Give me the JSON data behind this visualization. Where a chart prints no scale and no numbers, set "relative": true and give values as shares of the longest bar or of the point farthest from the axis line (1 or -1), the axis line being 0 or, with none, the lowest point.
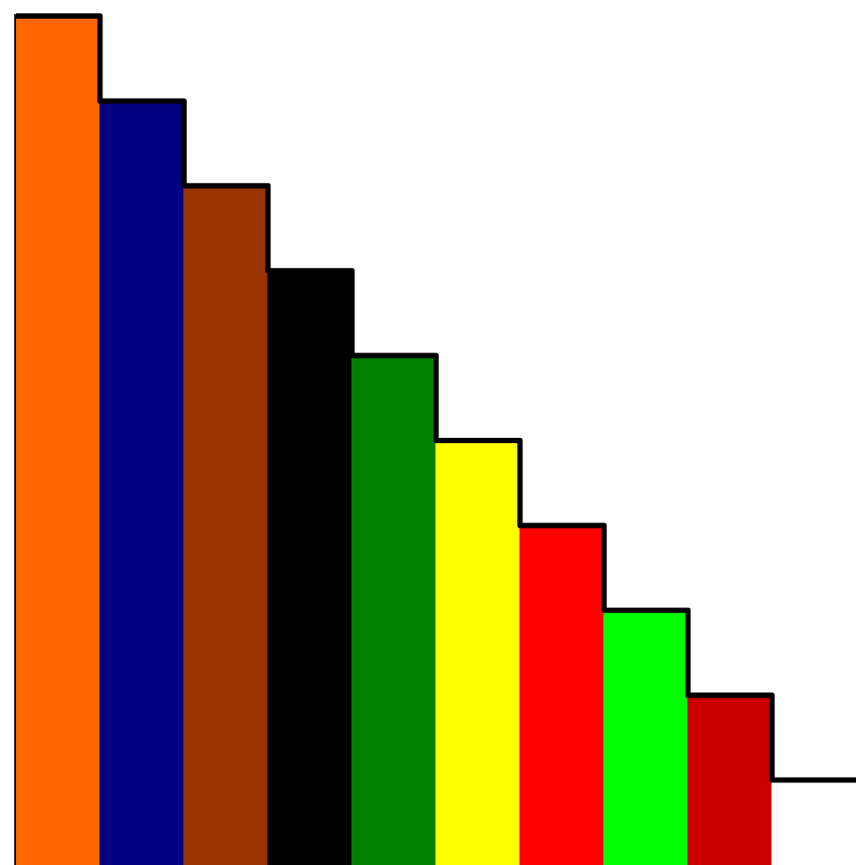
{
  "chart_data": {
    "type": "bar",
    "relative": true,
    "categories": [
      null,
      null,
      null,
      null,
      null,
      null,
      null,
      null,
      null,
      null
    ],
    "values": [
      1,
      0.9,
      0.8,
      0.7,
      0.6,
      0.5,
      0.4,
      0.3,
      0.2,
      0.1
    ],
    "colors": [
      "#ff6600",
      "#000080",
      "#993300",
      "#000000",
      "#008000",
      "#ffff00",
      "#ff0000",
      "#00ff00",
      "#cc0000",
      "#ffffff"
    ],
    "grid": false,
    "legend": false
  }
}
